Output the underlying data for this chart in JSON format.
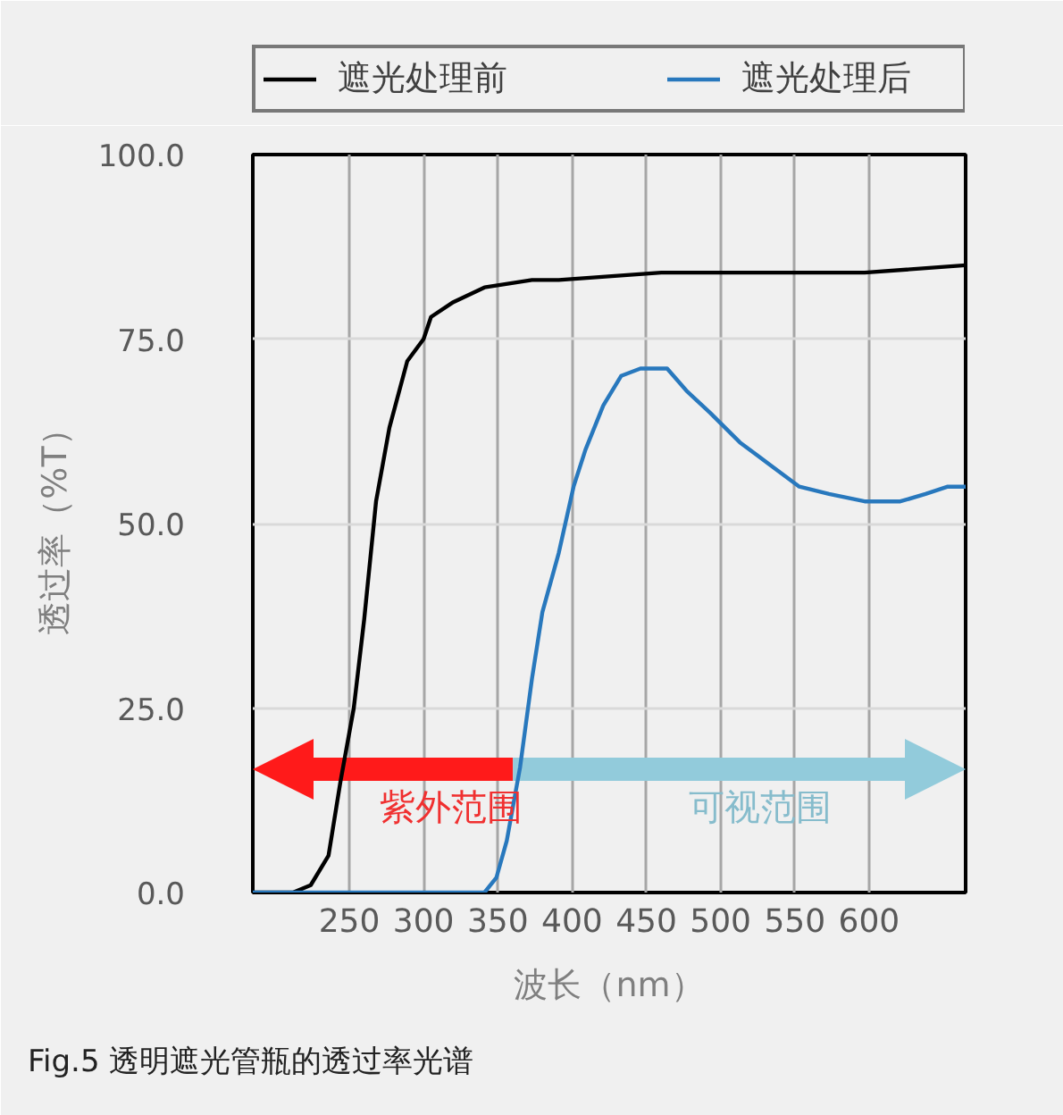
{
  "chart_data": {
    "type": "line",
    "xlabel": "波长（nm）",
    "ylabel": "透过率（%T）",
    "xlim": [
      185,
      665
    ],
    "xticks": [
      250,
      300,
      350,
      400,
      450,
      500,
      550,
      600
    ],
    "ylim": [
      0,
      100
    ],
    "yticks": [
      {
        "value": 0,
        "label": "0.0"
      },
      {
        "value": 25,
        "label": "25.0"
      },
      {
        "value": 50,
        "label": "50.0"
      },
      {
        "value": 75,
        "label": "75.0"
      },
      {
        "value": 100,
        "label": "100.0"
      }
    ],
    "grid": true,
    "legend": "top",
    "line_style": "solid",
    "series": [
      {
        "name": "遮光处理前",
        "color": "#000000",
        "x": [
          185,
          212,
          224,
          236,
          244,
          253,
          260,
          268,
          277,
          289,
          300,
          305,
          320,
          341,
          373,
          391,
          460,
          528,
          597,
          665
        ],
        "values": [
          0,
          0,
          1,
          5,
          15,
          25,
          37,
          53,
          63,
          72,
          75,
          78,
          80,
          82,
          83,
          83,
          84,
          84,
          84,
          85
        ]
      },
      {
        "name": "遮光处理后",
        "color": "#2878bd",
        "x": [
          185,
          341,
          349,
          356,
          365,
          373,
          380,
          391,
          401,
          409,
          421,
          433,
          446,
          457,
          464,
          477,
          493,
          513,
          533,
          553,
          573,
          597,
          621,
          638,
          653,
          665
        ],
        "values": [
          0,
          0,
          2,
          7,
          17,
          29,
          38,
          46,
          55,
          60,
          66,
          70,
          71,
          71,
          71,
          68,
          65,
          61,
          58,
          55,
          54,
          53,
          53,
          54,
          55,
          55
        ]
      }
    ],
    "annotations": [
      "紫外范围",
      "可视范围",
      "Fig.5    透明遮光管瓶的透过率光谱"
    ]
  }
}
